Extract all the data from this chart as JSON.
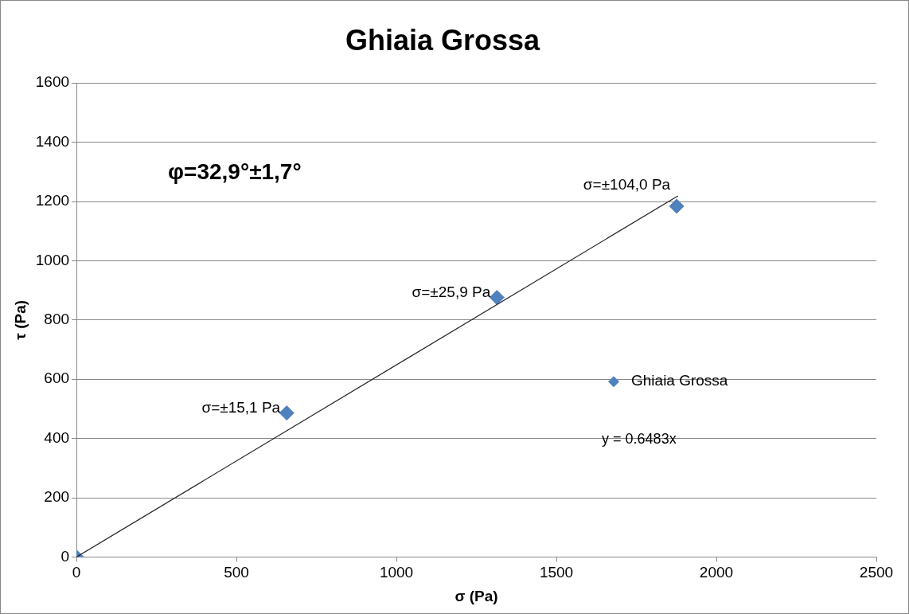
{
  "chart_data": {
    "type": "scatter",
    "title": "Ghiaia Grossa",
    "xlabel": "σ (Pa)",
    "ylabel": "τ (Pa)",
    "x": [
      0,
      657,
      1314,
      1876
    ],
    "series": [
      {
        "name": "Ghiaia Grossa",
        "color": "#4f81bd",
        "values": [
          0,
          486,
          876,
          1184
        ],
        "marker": "diamond"
      },
      {
        "type": "line",
        "color": "#222222",
        "x": [
          0,
          1880
        ],
        "values": [
          0,
          1219
        ],
        "marker": "none"
      }
    ],
    "xlim": [
      0,
      2500
    ],
    "xticks": [
      0,
      500,
      1000,
      1500,
      2000,
      2500
    ],
    "ylim": [
      0,
      1600
    ],
    "yticks": [
      0,
      200,
      400,
      600,
      800,
      1000,
      1200,
      1400,
      1600
    ],
    "grid": "y",
    "legend": "right",
    "annotations": [
      "φ=32,9°±1,7°",
      {
        "text": "σ=±15,1 Pa",
        "x": 657,
        "y": 486
      },
      {
        "text": "σ=±25,9 Pa",
        "x": 1314,
        "y": 876
      },
      {
        "text": "σ=±104,0 Pa",
        "x": 1876,
        "y": 1184
      },
      "y = 0.6483x"
    ]
  }
}
